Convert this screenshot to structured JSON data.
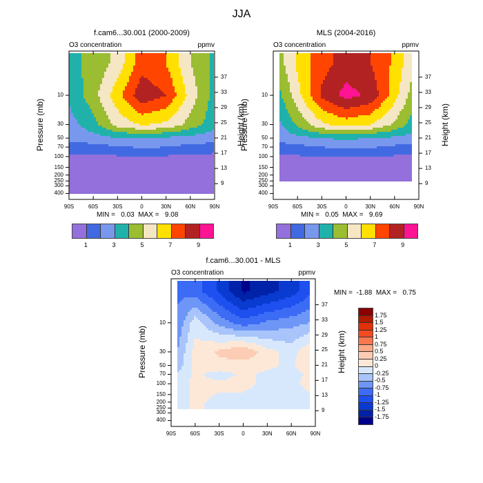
{
  "page": {
    "title": "JJA"
  },
  "chart_data": [
    {
      "type": "heatmap",
      "title": "f.cam6...30.001 (2000-2009)",
      "left_string": "O3 concentration",
      "right_string": "ppmv",
      "xlabel": "",
      "ylabel": "Pressure (mb)",
      "y2label": "Height (km)",
      "x_ticks": [
        "90S",
        "60S",
        "30S",
        "0",
        "30N",
        "60N",
        "90N"
      ],
      "y_ticks": [
        "10",
        "30",
        "50",
        "70",
        "100",
        "150",
        "200",
        "250",
        "300",
        "400"
      ],
      "y2_ticks": [
        "37",
        "33",
        "29",
        "25",
        "21",
        "17",
        "13",
        "9"
      ],
      "min_label": "MIN =   0.03  MAX =   9.08",
      "levels": [
        1,
        2,
        3,
        4,
        5,
        6,
        7,
        8,
        9
      ],
      "level_labels": [
        "1",
        "3",
        "5",
        "7",
        "9"
      ],
      "colors": [
        "#9370DB",
        "#4169E1",
        "#7898EE",
        "#20B2AA",
        "#9ABD32",
        "#F5E6C4",
        "#FFE000",
        "#FF4500",
        "#B22222",
        "#FF1493"
      ],
      "x": [
        -90,
        -60,
        -30,
        0,
        30,
        60,
        90
      ],
      "pressure": [
        3,
        10,
        30,
        50,
        70,
        100,
        400
      ],
      "values": [
        [
          3.8,
          4.2,
          5.4,
          7.6,
          7.0,
          5.0,
          3.8
        ],
        [
          3.2,
          4.6,
          6.6,
          8.7,
          8.0,
          5.6,
          3.6
        ],
        [
          2.6,
          3.6,
          5.4,
          6.1,
          5.8,
          4.6,
          3.4
        ],
        [
          2.2,
          2.6,
          2.9,
          3.0,
          2.8,
          2.6,
          2.4
        ],
        [
          1.6,
          1.6,
          1.9,
          2.1,
          2.0,
          1.7,
          1.6
        ],
        [
          0.8,
          0.8,
          0.9,
          1.0,
          0.9,
          0.8,
          0.7
        ],
        [
          0.1,
          0.1,
          0.1,
          0.1,
          0.1,
          0.1,
          0.1
        ]
      ]
    },
    {
      "type": "heatmap",
      "title": "MLS (2004-2016)",
      "left_string": "O3 concentration",
      "right_string": "ppmv",
      "ylabel": "Pressure (mb)",
      "y2label": "Height (km)",
      "x_ticks": [
        "90S",
        "60S",
        "30S",
        "0",
        "30N",
        "60N",
        "90N"
      ],
      "y_ticks": [
        "10",
        "30",
        "50",
        "70",
        "100",
        "150",
        "200",
        "250",
        "300",
        "400"
      ],
      "y2_ticks": [
        "37",
        "33",
        "29",
        "25",
        "21",
        "17",
        "13",
        "9"
      ],
      "min_label": "MIN =   0.05  MAX =   9.69",
      "levels": [
        1,
        2,
        3,
        4,
        5,
        6,
        7,
        8,
        9
      ],
      "level_labels": [
        "1",
        "3",
        "5",
        "7",
        "9"
      ],
      "colors": [
        "#9370DB",
        "#4169E1",
        "#7898EE",
        "#20B2AA",
        "#9ABD32",
        "#F5E6C4",
        "#FFE000",
        "#FF4500",
        "#B22222",
        "#FF1493"
      ],
      "x": [
        -82,
        -60,
        -30,
        0,
        30,
        60,
        82
      ],
      "pressure": [
        3,
        10,
        30,
        50,
        70,
        100,
        260
      ],
      "values": [
        [
          4.6,
          6.2,
          7.6,
          8.4,
          8.0,
          6.8,
          5.2
        ],
        [
          3.8,
          5.6,
          8.2,
          9.4,
          8.8,
          6.4,
          4.6
        ],
        [
          2.8,
          4.2,
          5.8,
          6.4,
          6.0,
          4.8,
          3.6
        ],
        [
          2.4,
          2.7,
          3.0,
          3.2,
          3.0,
          2.8,
          2.6
        ],
        [
          1.6,
          1.7,
          2.0,
          2.2,
          2.1,
          1.8,
          1.6
        ],
        [
          0.9,
          0.9,
          1.0,
          1.0,
          1.0,
          0.9,
          0.8
        ],
        [
          0.1,
          0.1,
          0.1,
          0.1,
          0.1,
          0.1,
          0.1
        ]
      ]
    },
    {
      "type": "heatmap",
      "title": "f.cam6...30.001 - MLS",
      "left_string": "O3 concentration",
      "right_string": "ppmv",
      "ylabel": "Pressure (mb)",
      "y2label": "Height (km)",
      "x_ticks": [
        "90S",
        "60S",
        "30S",
        "0",
        "30N",
        "60N",
        "90N"
      ],
      "y_ticks": [
        "10",
        "30",
        "50",
        "70",
        "100",
        "150",
        "200",
        "250",
        "300",
        "400"
      ],
      "y2_ticks": [
        "37",
        "33",
        "29",
        "25",
        "21",
        "17",
        "13",
        "9"
      ],
      "min_label": "MIN =  -1.88  MAX =   0.75",
      "levels": [
        -1.75,
        -1.5,
        -1.25,
        -1,
        -0.75,
        -0.5,
        -0.25,
        0,
        0.25,
        0.5,
        0.75,
        1,
        1.25,
        1.5,
        1.75
      ],
      "level_labels": [
        "1.75",
        "1.5",
        "1.25",
        "1",
        "0.75",
        "0.5",
        "0.25",
        "0",
        "-0.25",
        "-0.5",
        "-0.75",
        "-1",
        "-1.25",
        "-1.5",
        "-1.75"
      ],
      "colors": [
        "#00008B",
        "#0022A8",
        "#0A3BD0",
        "#1E50F0",
        "#3C6CF5",
        "#6E96F7",
        "#A8C4FA",
        "#D8E8FC",
        "#FDE8D8",
        "#FCCDB4",
        "#FBA884",
        "#F87850",
        "#F24A22",
        "#E43008",
        "#B21B00",
        "#8B0000"
      ],
      "x": [
        -82,
        -60,
        -30,
        0,
        30,
        60,
        82
      ],
      "pressure": [
        3,
        10,
        30,
        50,
        70,
        100,
        260
      ],
      "values": [
        [
          -0.8,
          -0.9,
          -1.3,
          -1.8,
          -1.6,
          -1.4,
          -1.1
        ],
        [
          -0.7,
          -0.1,
          -0.6,
          -0.9,
          -0.7,
          -0.6,
          -0.5
        ],
        [
          -0.5,
          0.1,
          0.3,
          0.5,
          0.1,
          -0.1,
          0.2
        ],
        [
          -0.4,
          0.1,
          0.15,
          0.1,
          0.05,
          -0.05,
          0.2
        ],
        [
          -0.2,
          0.05,
          -0.1,
          0.05,
          -0.05,
          -0.1,
          0.05
        ],
        [
          -0.1,
          0.05,
          0.05,
          0.05,
          -0.05,
          -0.05,
          0.05
        ],
        [
          -0.1,
          0.05,
          -0.1,
          -0.1,
          -0.1,
          -0.1,
          -0.1
        ]
      ]
    }
  ]
}
